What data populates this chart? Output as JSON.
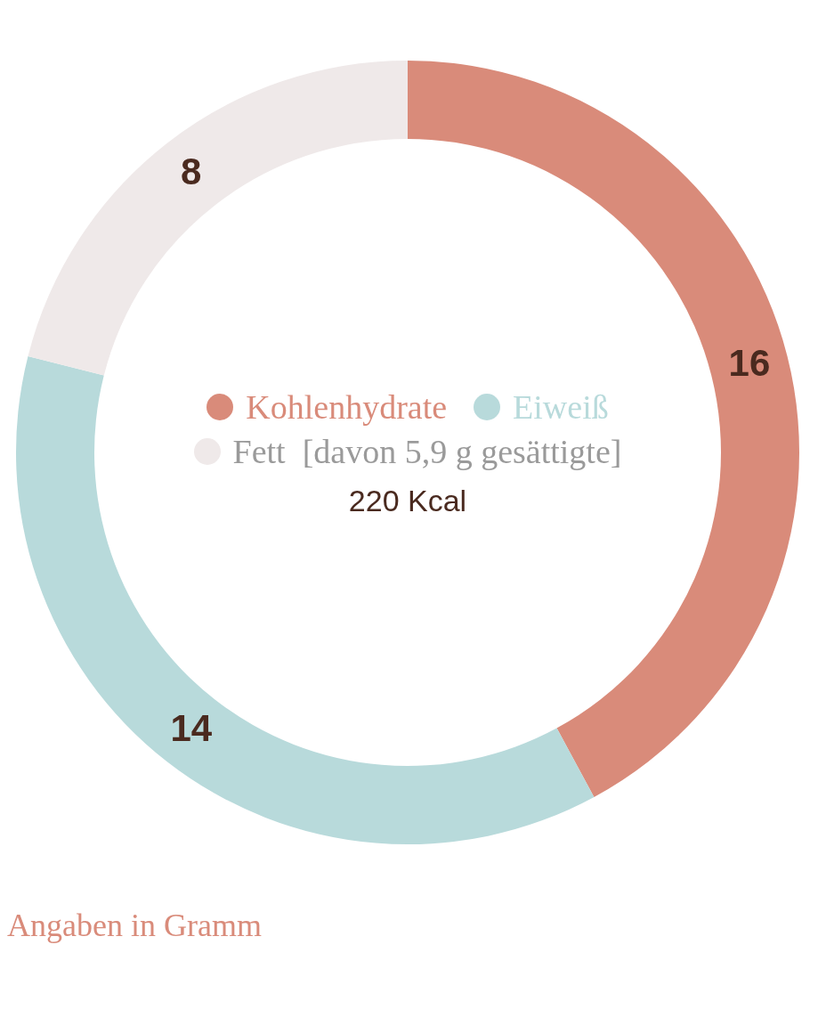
{
  "chart_data": {
    "type": "donut",
    "categories": [
      "Kohlenhydrate",
      "Eiweiß",
      "Fett  [davon 5,9 g gesättigte]"
    ],
    "values": [
      16,
      14,
      8
    ],
    "colors": [
      "#d98b7a",
      "#b8dadb",
      "#efe9e9"
    ],
    "data_labels": true,
    "legend": "center",
    "annotations": [
      "220 Kcal",
      "Angaben in Gramm"
    ]
  }
}
